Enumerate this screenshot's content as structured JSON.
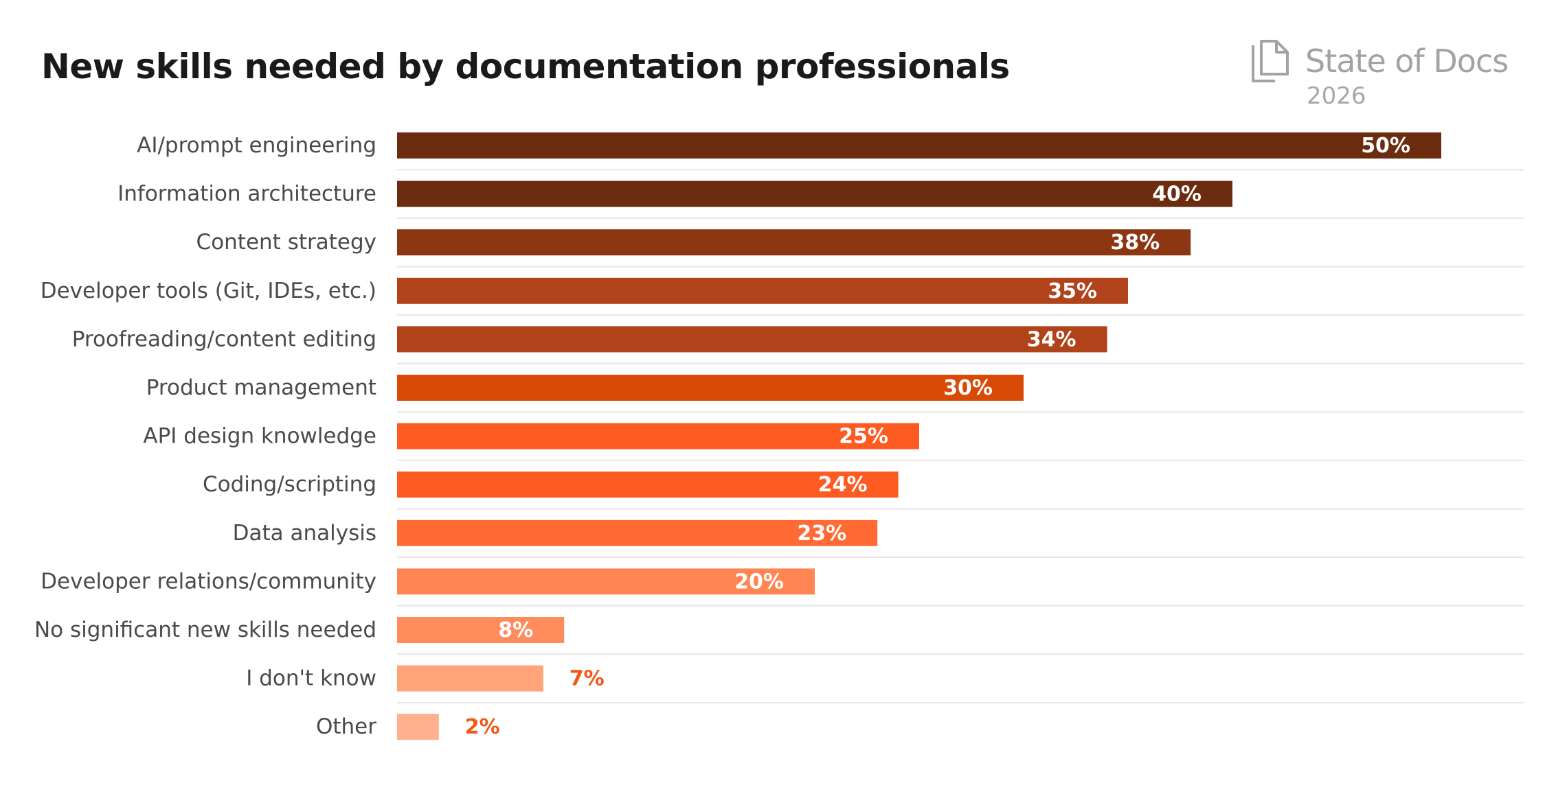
{
  "chart_data": {
    "type": "bar",
    "orientation": "horizontal",
    "title": "New skills needed by documentation professionals",
    "categories": [
      "AI/prompt engineering",
      "Information architecture",
      "Content strategy",
      "Developer tools (Git, IDEs, etc.)",
      "Proofreading/content editing",
      "Product management",
      "API design knowledge",
      "Coding/scripting",
      "Data analysis",
      "Developer relations/community",
      "No significant new skills needed",
      "I don't know",
      "Other"
    ],
    "values": [
      50,
      40,
      38,
      35,
      34,
      30,
      25,
      24,
      23,
      20,
      8,
      7,
      2
    ],
    "value_labels": [
      "50%",
      "40%",
      "38%",
      "35%",
      "34%",
      "30%",
      "25%",
      "24%",
      "23%",
      "20%",
      "8%",
      "7%",
      "2%"
    ],
    "colors": [
      "#6b2c0f",
      "#6b2c0f",
      "#8c3612",
      "#b04319",
      "#b04319",
      "#d84a05",
      "#fe5b23",
      "#fe5b23",
      "#ff6a35",
      "#ff8552",
      "#ff8c5c",
      "#ffa37b",
      "#ffb08f"
    ],
    "value_label_colors": [
      "#ffffff",
      "#ffffff",
      "#ffffff",
      "#ffffff",
      "#ffffff",
      "#ffffff",
      "#ffffff",
      "#ffffff",
      "#ffffff",
      "#ffffff",
      "#ffffff",
      "#f35818",
      "#f35818"
    ],
    "xlim": [
      0,
      54
    ],
    "grid": false,
    "xlabel": "",
    "ylabel": ""
  },
  "brand": {
    "name": "State of Docs",
    "year": "2026",
    "logo_icon": "stacked-documents-icon"
  },
  "colors": {
    "title": "#1a1a1a",
    "category_label": "#4a4a4a",
    "separator": "#e6e6e6",
    "brand": "#a3a3a3"
  }
}
